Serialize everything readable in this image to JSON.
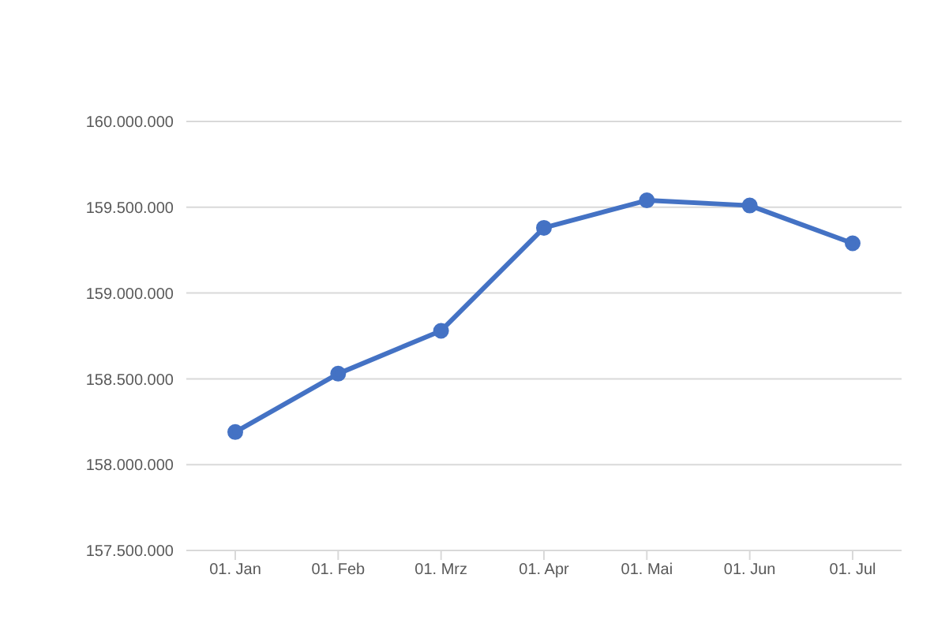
{
  "chart_data": {
    "type": "line",
    "categories": [
      "01. Jan",
      "01. Feb",
      "01. Mrz",
      "01. Apr",
      "01. Mai",
      "01. Jun",
      "01. Jul"
    ],
    "series": [
      {
        "color": "#4472c4",
        "values": [
          158190000,
          158530000,
          158780000,
          159380000,
          159540000,
          159510000,
          159290000
        ]
      }
    ],
    "ylim": [
      157500000,
      160000000
    ],
    "yticks": [
      {
        "value": 157500000,
        "label": "157.500.000"
      },
      {
        "value": 158000000,
        "label": "158.000.000"
      },
      {
        "value": 158500000,
        "label": "158.500.000"
      },
      {
        "value": 159000000,
        "label": "159.000.000"
      },
      {
        "value": 159500000,
        "label": "159.500.000"
      },
      {
        "value": 160000000,
        "label": "160.000.000"
      }
    ],
    "grid": "y",
    "legend": false,
    "marker": "circle",
    "line_style": "solid"
  }
}
